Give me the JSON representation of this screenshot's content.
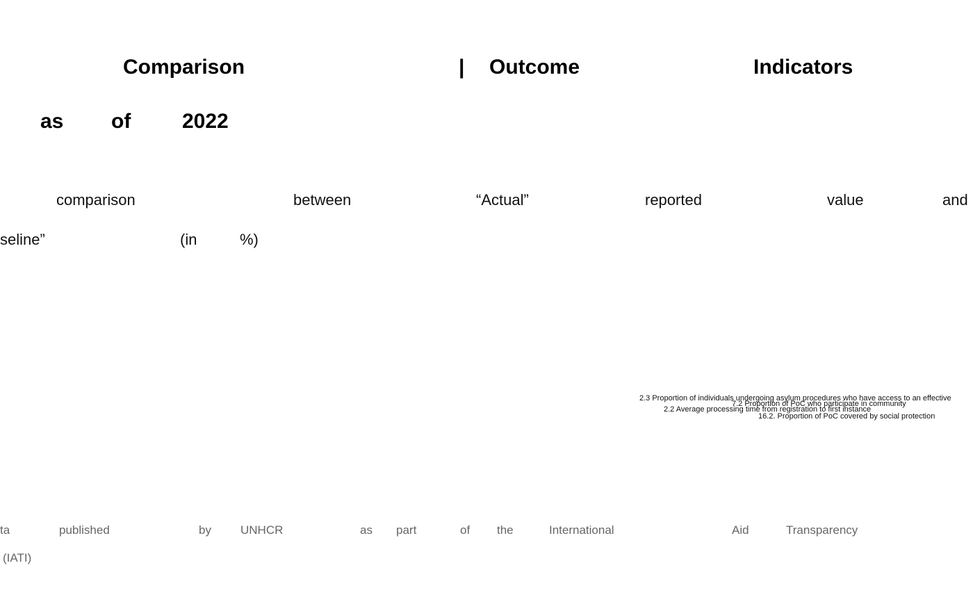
{
  "title": {
    "lines": [
      [
        "Comparison",
        "|",
        "Outcome",
        "Indicators"
      ],
      [
        "as",
        "of",
        "2022"
      ]
    ]
  },
  "subtitle": {
    "lines": [
      [
        "comparison",
        "between",
        "“Actual”",
        "reported",
        "value",
        "and"
      ],
      [
        "seline”",
        "(in",
        "%)"
      ]
    ]
  },
  "labels": [
    "2.3 Proportion of individuals undergoing asylum procedures who have access to an effective",
    "7.2 Proportion of PoC who participate in community",
    "2.2 Average processing time from registration to first instance",
    "16.2. Proportion of PoC covered by social protection"
  ],
  "footer": {
    "lines": [
      [
        "ta",
        "published",
        "by",
        "UNHCR",
        "as",
        "part",
        "of",
        "the",
        "International",
        "Aid",
        "Transparency"
      ],
      [
        "(IATI)"
      ]
    ]
  }
}
